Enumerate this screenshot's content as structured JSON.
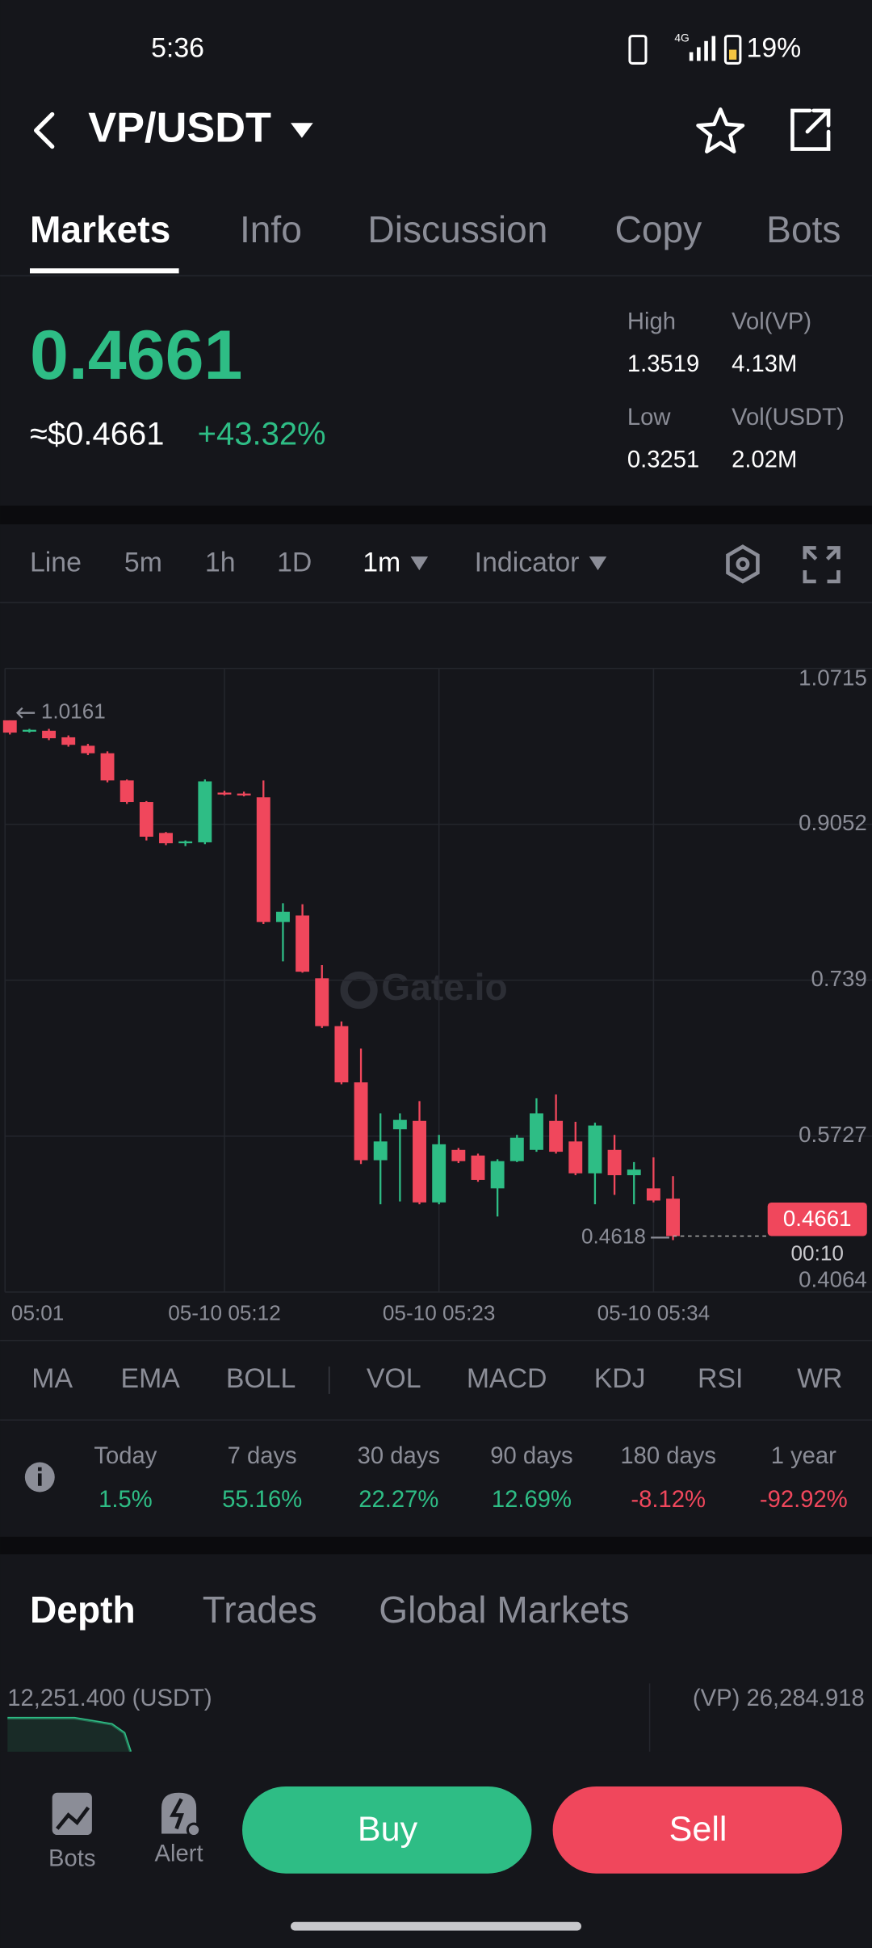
{
  "status_bar": {
    "time": "5:36",
    "network": "4G",
    "battery": "19%"
  },
  "header": {
    "pair": "VP/USDT"
  },
  "tabs": [
    "Markets",
    "Info",
    "Discussion",
    "Copy",
    "Bots"
  ],
  "ticker": {
    "price": "0.4661",
    "usd_price": "≈$0.4661",
    "change": "+43.32%",
    "stats": [
      {
        "label": "High",
        "value": "1.3519"
      },
      {
        "label": "Vol(VP)",
        "value": "4.13M"
      },
      {
        "label": "Low",
        "value": "0.3251"
      },
      {
        "label": "Vol(USDT)",
        "value": "2.02M"
      }
    ]
  },
  "timeframes": [
    "Line",
    "5m",
    "1h",
    "1D",
    "1m",
    "Indicator"
  ],
  "chart_data": {
    "type": "candlestick",
    "watermark": "Gate.io",
    "up_color": "#2ebd85",
    "down_color": "#f0475c",
    "grid": true,
    "open": [
      1.0161,
      1.004,
      1.005,
      0.998,
      0.989,
      0.981,
      0.952,
      0.929,
      0.896,
      0.885,
      0.886,
      0.939,
      0.938,
      0.934,
      0.801,
      0.808,
      0.741,
      0.69,
      0.63,
      0.547,
      0.58,
      0.589,
      0.502,
      0.558,
      0.552,
      0.517,
      0.546,
      0.558,
      0.589,
      0.567,
      0.533,
      0.558,
      0.531,
      0.517,
      0.506
    ],
    "high": [
      1.0161,
      1.007,
      1.007,
      1.0,
      0.991,
      0.983,
      0.953,
      0.93,
      0.897,
      0.888,
      0.953,
      0.941,
      0.94,
      0.952,
      0.821,
      0.82,
      0.755,
      0.695,
      0.666,
      0.597,
      0.597,
      0.61,
      0.574,
      0.56,
      0.554,
      0.548,
      0.574,
      0.613,
      0.617,
      0.588,
      0.587,
      0.574,
      0.545,
      0.55,
      0.53
    ],
    "low": [
      1.001,
      1.003,
      0.995,
      0.988,
      0.979,
      0.95,
      0.927,
      0.888,
      0.883,
      0.882,
      0.884,
      0.936,
      0.935,
      0.799,
      0.759,
      0.747,
      0.688,
      0.628,
      0.543,
      0.5,
      0.503,
      0.5,
      0.5,
      0.544,
      0.524,
      0.487,
      0.545,
      0.556,
      0.554,
      0.531,
      0.5,
      0.51,
      0.5,
      0.502,
      0.4618
    ],
    "close": [
      1.003,
      1.006,
      0.997,
      0.99,
      0.981,
      0.952,
      0.929,
      0.892,
      0.885,
      0.887,
      0.951,
      0.938,
      0.937,
      0.801,
      0.812,
      0.748,
      0.69,
      0.63,
      0.547,
      0.567,
      0.59,
      0.502,
      0.564,
      0.546,
      0.526,
      0.546,
      0.571,
      0.597,
      0.556,
      0.533,
      0.584,
      0.531,
      0.537,
      0.504,
      0.4661
    ],
    "ylim": [
      0.4064,
      1.0715
    ],
    "yticks": [
      1.0715,
      0.9052,
      0.739,
      0.5727,
      0.4064
    ],
    "xlim": [
      -0.25,
      44.2
    ],
    "xticks": [
      {
        "value": 0,
        "label": "05:01"
      },
      {
        "value": 11,
        "label": "05-10 05:12"
      },
      {
        "value": 22,
        "label": "05-10 05:23"
      },
      {
        "value": 33,
        "label": "05-10 05:34"
      }
    ],
    "high_marker": {
      "value": 1.0161
    },
    "low_marker": {
      "value": 0.4618
    },
    "last_price": {
      "value": 0.4661,
      "countdown": "00:10",
      "color": "#f0475c"
    }
  },
  "indicators": [
    "MA",
    "EMA",
    "BOLL",
    "VOL",
    "MACD",
    "KDJ",
    "RSI",
    "WR"
  ],
  "performance": [
    {
      "period": "Today",
      "change": "1.5%",
      "color": "#2ebd85"
    },
    {
      "period": "7 days",
      "change": "55.16%",
      "color": "#2ebd85"
    },
    {
      "period": "30 days",
      "change": "22.27%",
      "color": "#2ebd85"
    },
    {
      "period": "90 days",
      "change": "12.69%",
      "color": "#2ebd85"
    },
    {
      "period": "180 days",
      "change": "-8.12%",
      "color": "#f0475c"
    },
    {
      "period": "1 year",
      "change": "-92.92%",
      "color": "#f0475c"
    }
  ],
  "depth_tabs": [
    "Depth",
    "Trades",
    "Global Markets"
  ],
  "depth": {
    "bid_total": "12,251.400 (USDT)",
    "ask_total": "(VP) 26,284.918"
  },
  "bottom_bar": {
    "bots": "Bots",
    "alert": "Alert",
    "buy": "Buy",
    "sell": "Sell"
  }
}
